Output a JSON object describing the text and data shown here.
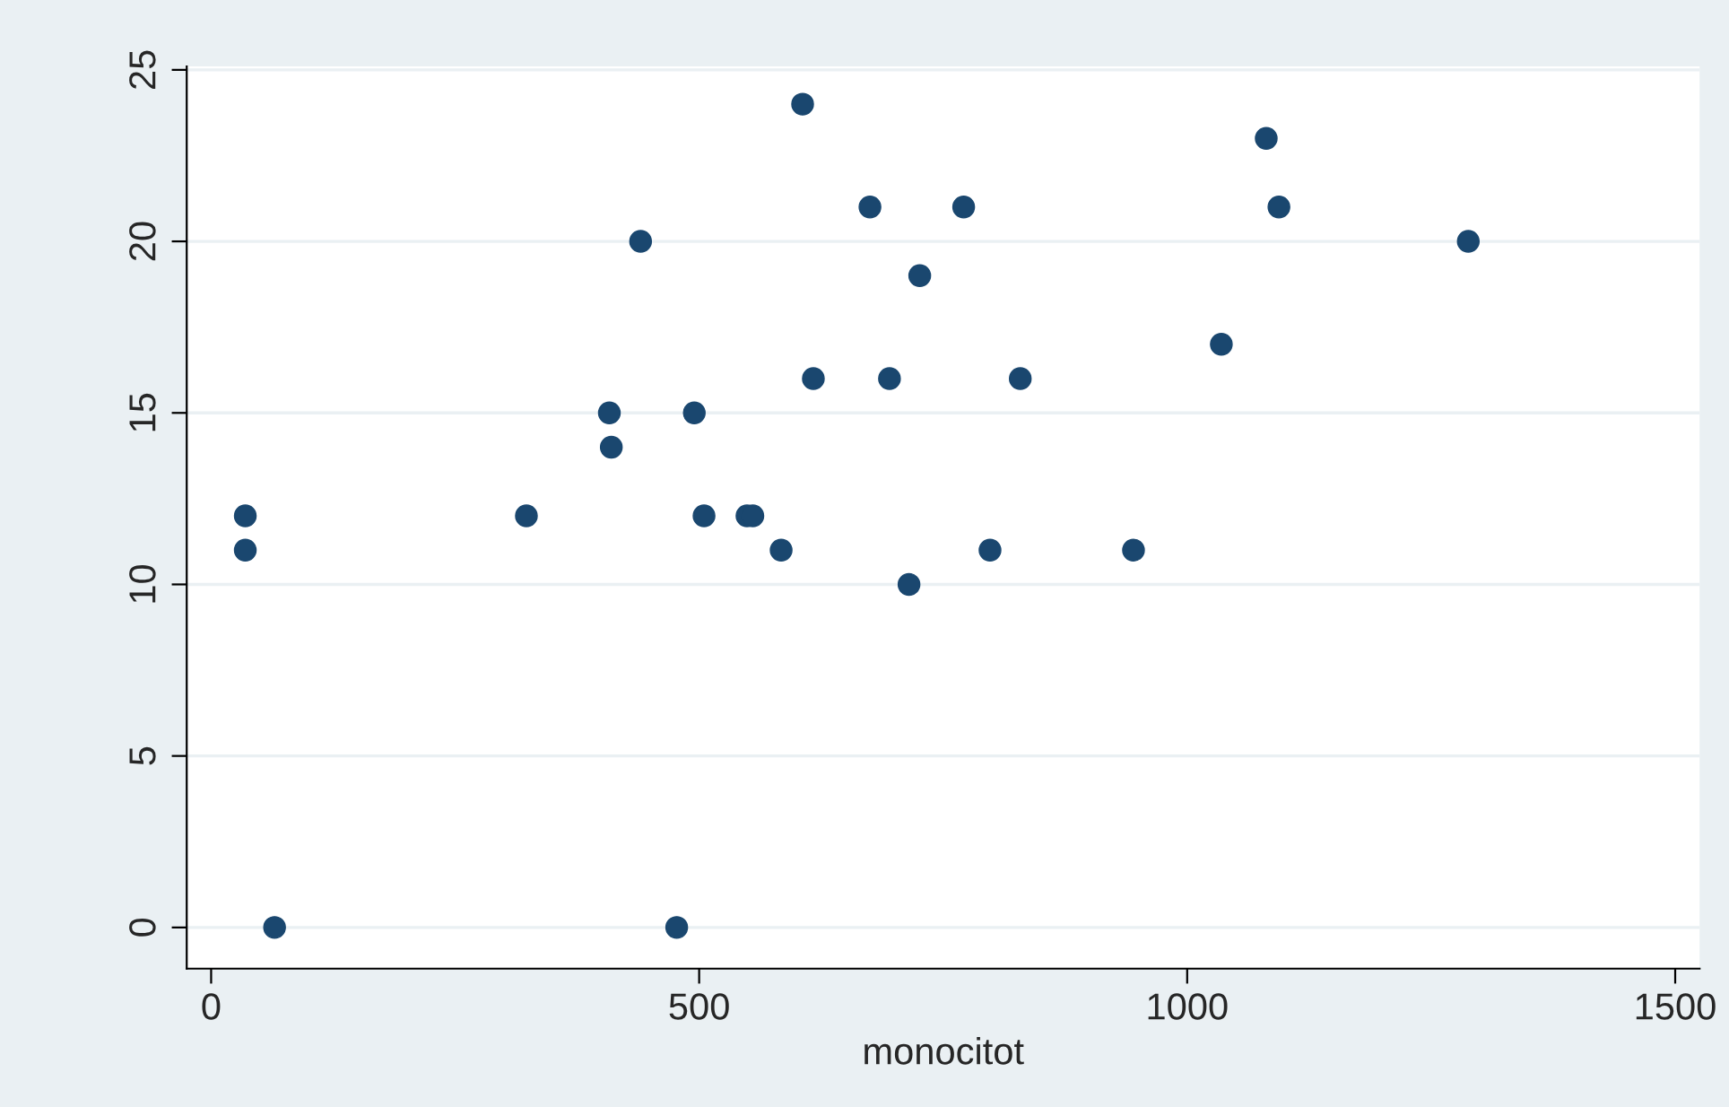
{
  "chart_data": {
    "type": "scatter",
    "xlabel": "monocitot",
    "x": [
      35,
      35,
      65,
      323,
      408,
      410,
      440,
      477,
      495,
      505,
      549,
      555,
      584,
      606,
      617,
      675,
      695,
      715,
      726,
      771,
      798,
      829,
      945,
      1035,
      1081,
      1094,
      1288
    ],
    "series": [
      {
        "color": "#1a476f",
        "values": [
          12,
          11,
          0,
          12,
          15,
          14,
          20,
          0,
          15,
          12,
          12,
          12,
          11,
          24,
          16,
          21,
          16,
          10,
          19,
          21,
          11,
          16,
          11,
          17,
          23,
          21,
          20
        ]
      }
    ],
    "xlim": [
      -25,
      1525
    ],
    "ylim": [
      -1.2,
      25.1
    ],
    "xticks": [
      0,
      500,
      1000,
      1500
    ],
    "yticks": [
      0,
      5,
      10,
      15,
      20,
      25
    ],
    "grid": "y",
    "marker": "circle",
    "legend": false
  }
}
